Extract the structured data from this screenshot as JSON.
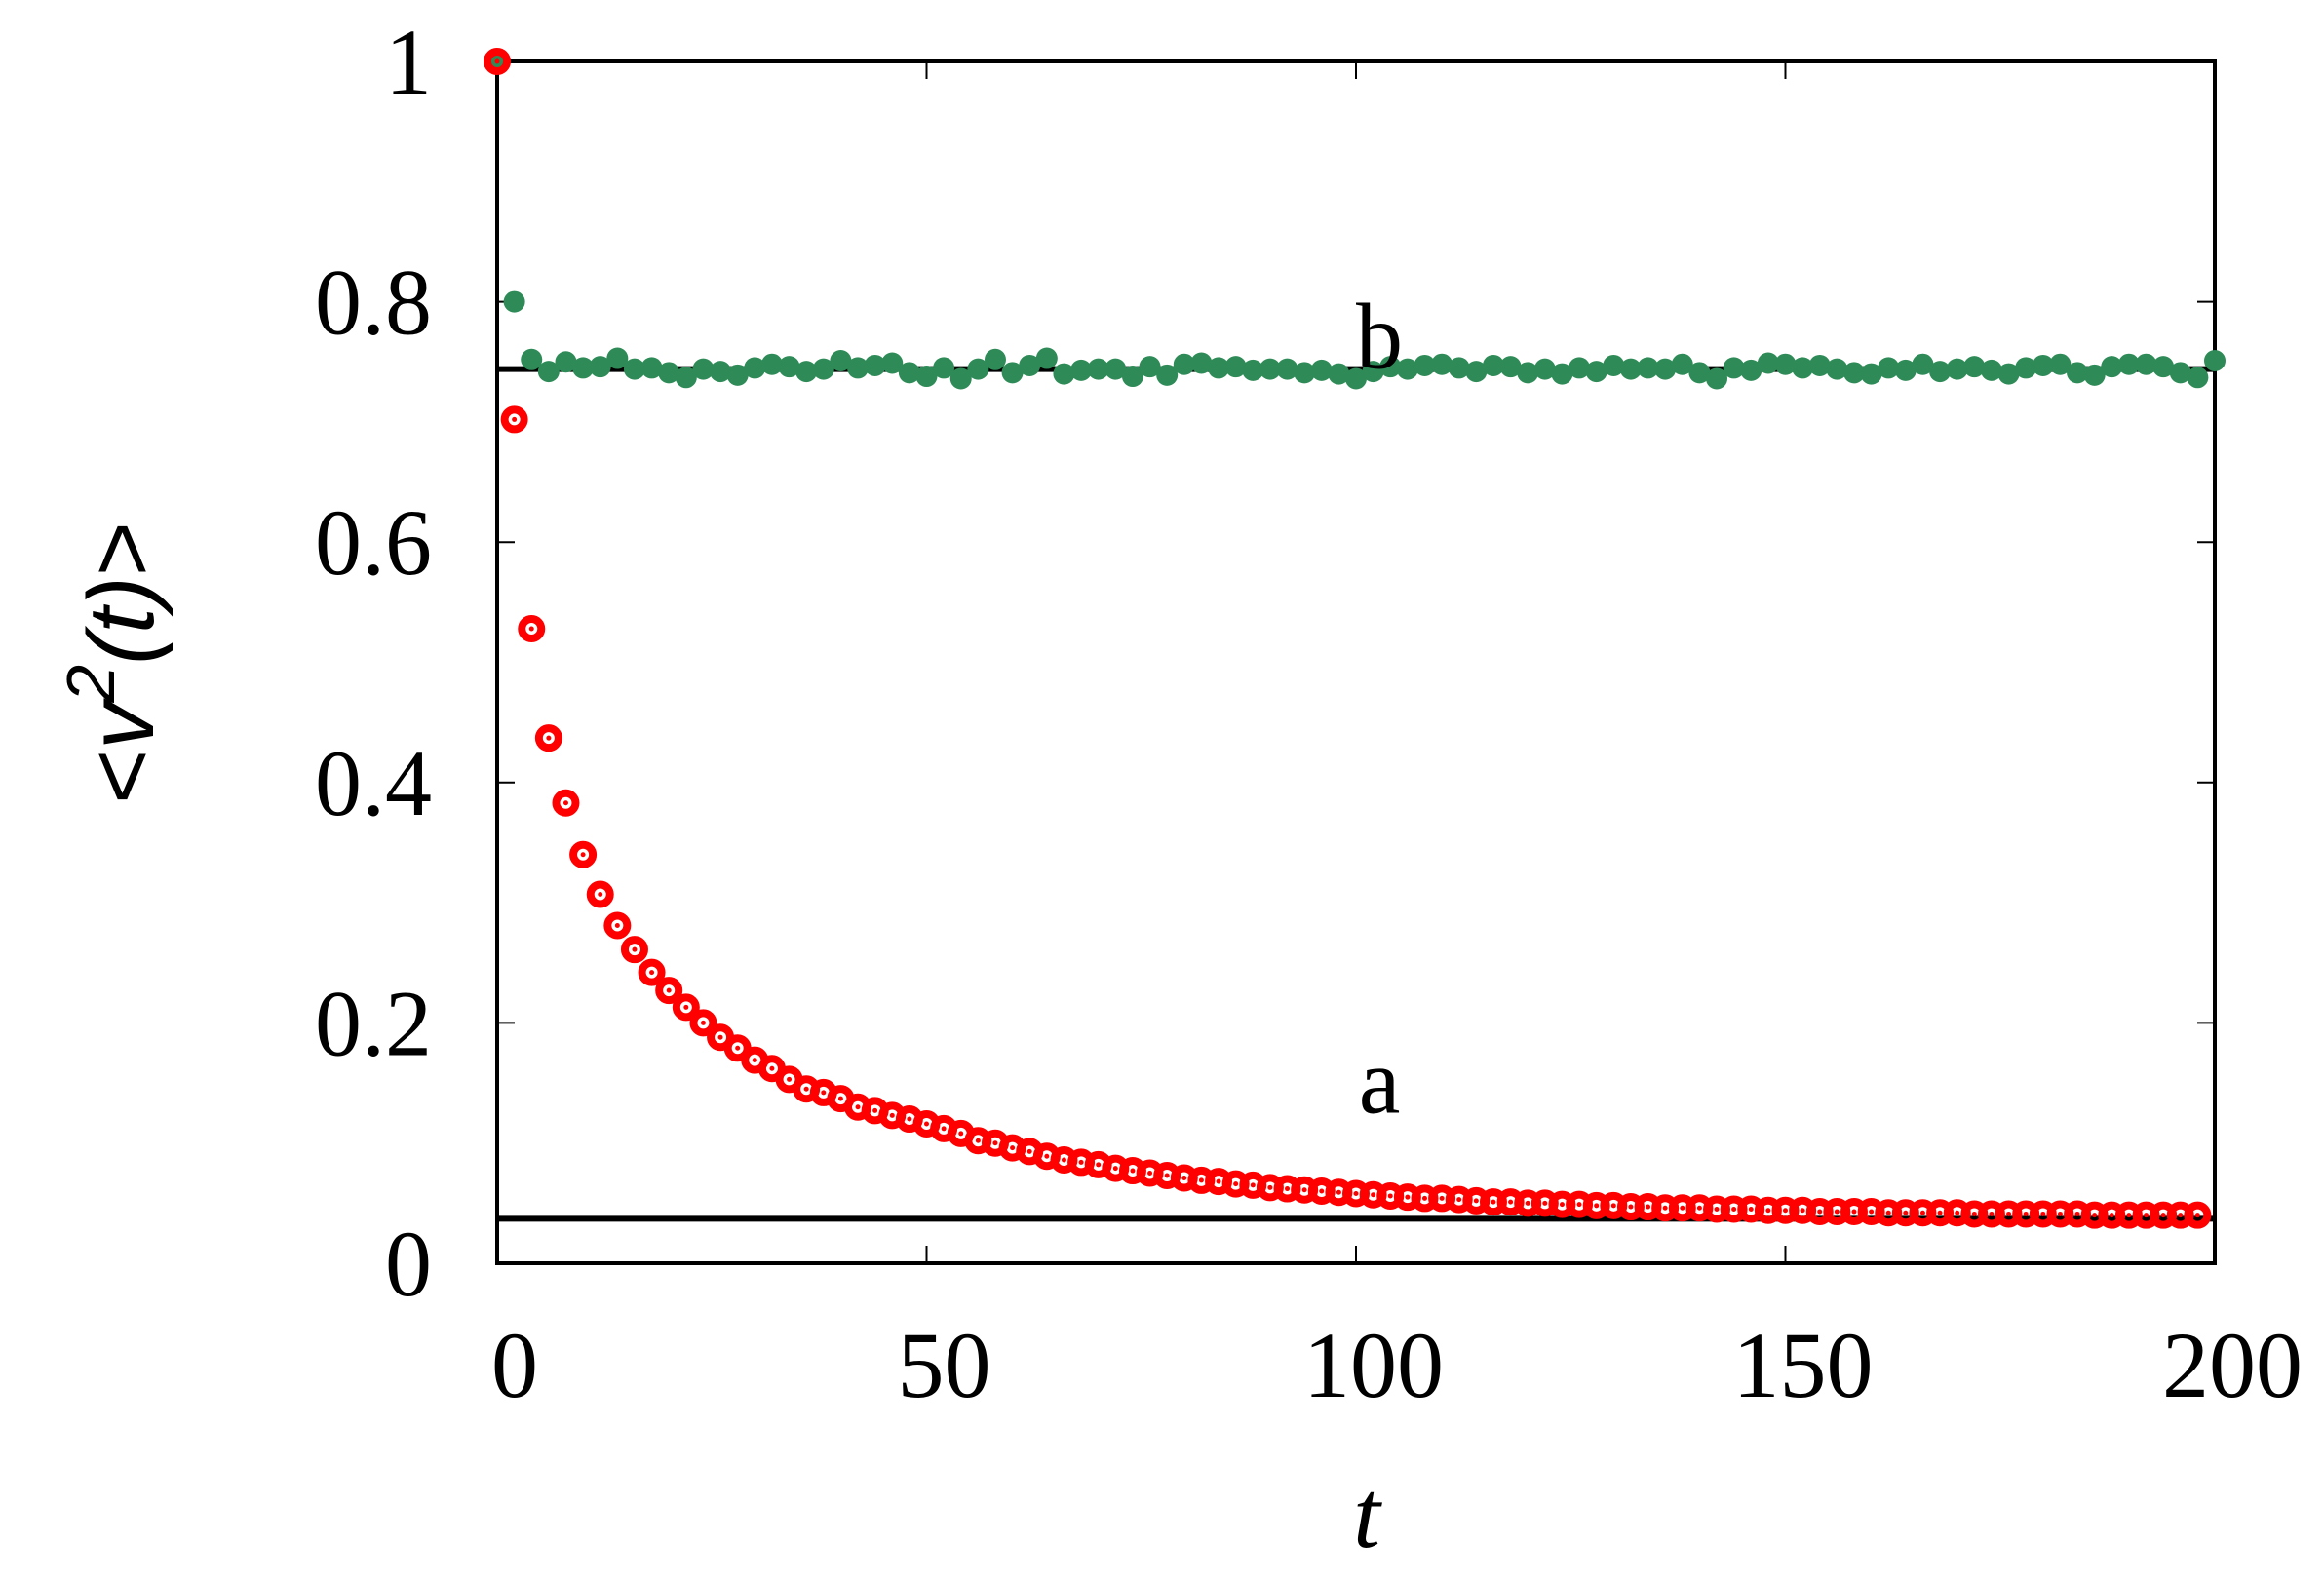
{
  "chart_data": {
    "type": "scatter",
    "title": "",
    "xlabel": "t",
    "ylabel": "<v²(t)>",
    "ylabel_parts": {
      "open": "<",
      "var": "v",
      "sup": "2",
      "arg": "(t)",
      "close": ">"
    },
    "xlim": [
      0,
      200
    ],
    "ylim": [
      0,
      1
    ],
    "grid": false,
    "legend": "none",
    "x_ticks": [
      "0",
      "50",
      "100",
      "150",
      "200"
    ],
    "x_tick_values": [
      0,
      50,
      100,
      150,
      200
    ],
    "y_ticks": [
      "0",
      "0.2",
      "0.4",
      "0.6",
      "0.8",
      "1"
    ],
    "y_tick_values": [
      0,
      0.2,
      0.4,
      0.6,
      0.8,
      1
    ],
    "annotations": [
      {
        "text": "a",
        "x": 100,
        "y": 0.16
      },
      {
        "text": "b",
        "x": 100,
        "y": 0.78
      }
    ],
    "reference_lines": [
      {
        "name": "a-asymptote",
        "y": 0.037,
        "color": "#000000"
      },
      {
        "name": "b-asymptote",
        "y": 0.744,
        "color": "#000000"
      }
    ],
    "series": [
      {
        "name": "a",
        "color": "#ff0000",
        "marker": "open-circle",
        "x_step": 2,
        "x_start": 0,
        "values": [
          1.0,
          0.702,
          0.528,
          0.437,
          0.383,
          0.34,
          0.307,
          0.281,
          0.261,
          0.242,
          0.227,
          0.213,
          0.2,
          0.188,
          0.179,
          0.169,
          0.162,
          0.153,
          0.145,
          0.142,
          0.137,
          0.13,
          0.127,
          0.123,
          0.12,
          0.116,
          0.112,
          0.108,
          0.102,
          0.1,
          0.096,
          0.093,
          0.089,
          0.086,
          0.084,
          0.082,
          0.079,
          0.077,
          0.075,
          0.073,
          0.071,
          0.069,
          0.068,
          0.066,
          0.065,
          0.063,
          0.062,
          0.061,
          0.06,
          0.059,
          0.058,
          0.057,
          0.056,
          0.055,
          0.054,
          0.054,
          0.053,
          0.052,
          0.051,
          0.051,
          0.05,
          0.05,
          0.049,
          0.049,
          0.048,
          0.048,
          0.047,
          0.047,
          0.046,
          0.046,
          0.046,
          0.045,
          0.045,
          0.045,
          0.044,
          0.044,
          0.044,
          0.043,
          0.043,
          0.043,
          0.043,
          0.042,
          0.042,
          0.042,
          0.042,
          0.042,
          0.041,
          0.041,
          0.041,
          0.041,
          0.041,
          0.041,
          0.041,
          0.04,
          0.04,
          0.04,
          0.04,
          0.04,
          0.04,
          0.04
        ]
      },
      {
        "name": "b",
        "color": "#2e8b57",
        "marker": "filled-circle",
        "x_step": 2,
        "x_start": 0,
        "values": [
          1.0,
          0.8,
          0.752,
          0.742,
          0.75,
          0.745,
          0.746,
          0.753,
          0.744,
          0.745,
          0.741,
          0.737,
          0.744,
          0.742,
          0.739,
          0.745,
          0.748,
          0.746,
          0.742,
          0.744,
          0.751,
          0.745,
          0.747,
          0.749,
          0.741,
          0.738,
          0.745,
          0.736,
          0.744,
          0.752,
          0.741,
          0.747,
          0.753,
          0.74,
          0.743,
          0.744,
          0.744,
          0.738,
          0.746,
          0.739,
          0.748,
          0.749,
          0.745,
          0.746,
          0.743,
          0.744,
          0.744,
          0.741,
          0.743,
          0.74,
          0.736,
          0.742,
          0.746,
          0.744,
          0.747,
          0.748,
          0.745,
          0.742,
          0.747,
          0.746,
          0.741,
          0.744,
          0.74,
          0.745,
          0.742,
          0.747,
          0.744,
          0.745,
          0.744,
          0.748,
          0.741,
          0.736,
          0.745,
          0.743,
          0.749,
          0.748,
          0.745,
          0.747,
          0.744,
          0.741,
          0.74,
          0.745,
          0.743,
          0.748,
          0.742,
          0.744,
          0.746,
          0.743,
          0.74,
          0.745,
          0.747,
          0.748,
          0.741,
          0.739,
          0.746,
          0.748,
          0.748,
          0.746,
          0.741,
          0.737,
          0.751
        ]
      }
    ]
  }
}
